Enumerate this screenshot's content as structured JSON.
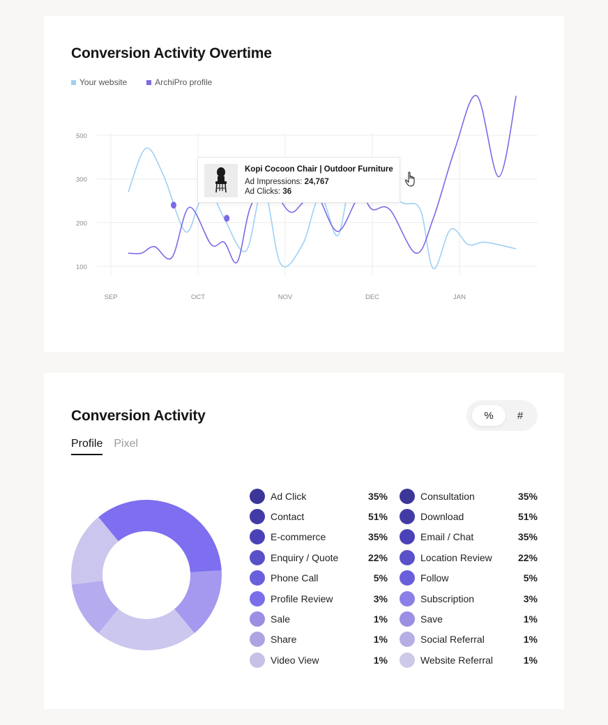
{
  "line_section": {
    "title": "Conversion Activity Overtime",
    "legend": [
      {
        "label": "Your website",
        "color": "#9fd0f4"
      },
      {
        "label": "ArchiPro profile",
        "color": "#7b6ae6"
      }
    ],
    "tooltip": {
      "title": "Kopi Cocoon Chair | Outdoor Furniture",
      "impressions_label": "Ad Impressions:",
      "impressions_value": "24,767",
      "clicks_label": "Ad Clicks:",
      "clicks_value": "36",
      "thumb_icon": "chair-icon",
      "cursor_icon": "hand-pointer-icon"
    }
  },
  "chart_data": [
    {
      "type": "line",
      "x": [
        "SEP",
        "OCT",
        "NOV",
        "DEC",
        "JAN"
      ],
      "ylim": [
        100,
        500
      ],
      "yticks": [
        100,
        200,
        300,
        500
      ],
      "grid": true,
      "legend_position": "top-left",
      "series": [
        {
          "name": "Your website",
          "color": "#9fd0f4",
          "points": [
            [
              0.2,
              270
            ],
            [
              0.4,
              370
            ],
            [
              0.6,
              310
            ],
            [
              0.85,
              180
            ],
            [
              1.0,
              240
            ],
            [
              1.1,
              290
            ],
            [
              1.3,
              210
            ],
            [
              1.55,
              135
            ],
            [
              1.75,
              280
            ],
            [
              1.95,
              105
            ],
            [
              2.2,
              150
            ],
            [
              2.4,
              260
            ],
            [
              2.6,
              170
            ],
            [
              2.75,
              295
            ],
            [
              2.9,
              285
            ],
            [
              3.1,
              275
            ],
            [
              3.35,
              245
            ],
            [
              3.55,
              230
            ],
            [
              3.7,
              95
            ],
            [
              3.9,
              185
            ],
            [
              4.1,
              150
            ],
            [
              4.3,
              155
            ],
            [
              4.65,
              140
            ]
          ]
        },
        {
          "name": "ArchiPro profile",
          "color": "#7b6ae6",
          "points": [
            [
              0.2,
              130
            ],
            [
              0.35,
              130
            ],
            [
              0.5,
              145
            ],
            [
              0.7,
              120
            ],
            [
              0.9,
              235
            ],
            [
              1.15,
              150
            ],
            [
              1.3,
              155
            ],
            [
              1.45,
              110
            ],
            [
              1.6,
              235
            ],
            [
              1.8,
              285
            ],
            [
              2.05,
              225
            ],
            [
              2.2,
              245
            ],
            [
              2.35,
              270
            ],
            [
              2.6,
              180
            ],
            [
              2.85,
              260
            ],
            [
              3.0,
              230
            ],
            [
              3.2,
              230
            ],
            [
              3.5,
              130
            ],
            [
              3.7,
              210
            ],
            [
              3.95,
              370
            ],
            [
              4.2,
              490
            ],
            [
              4.45,
              305
            ],
            [
              4.65,
              490
            ]
          ]
        }
      ],
      "markers": [
        {
          "series": "ArchiPro profile",
          "x": 0.72,
          "y": 240
        },
        {
          "series": "Your website",
          "x": 1.33,
          "y": 210
        }
      ]
    },
    {
      "type": "pie",
      "donut": true,
      "slices": [
        {
          "value": 35,
          "color": "#7e6ef0"
        },
        {
          "value": 15,
          "color": "#a499ef"
        },
        {
          "value": 22,
          "color": "#ccc7ee"
        },
        {
          "value": 12,
          "color": "#b4acee"
        },
        {
          "value": 16,
          "color": "#cbc6ed"
        }
      ]
    }
  ],
  "activity_section": {
    "title": "Conversion Activity",
    "toggle": {
      "percent": "%",
      "count": "#"
    },
    "tabs": [
      {
        "label": "Profile",
        "active": true
      },
      {
        "label": "Pixel",
        "active": false
      }
    ],
    "left_items": [
      {
        "label": "Ad Click",
        "value": "35%",
        "color": "#3c3698"
      },
      {
        "label": "Contact",
        "value": "51%",
        "color": "#423ba6"
      },
      {
        "label": "E-commerce",
        "value": "35%",
        "color": "#4a42b6"
      },
      {
        "label": "Enquiry / Quote",
        "value": "22%",
        "color": "#5a50c8"
      },
      {
        "label": "Phone Call",
        "value": "5%",
        "color": "#6a5fdb"
      },
      {
        "label": "Profile Review",
        "value": "3%",
        "color": "#7b6ee9"
      },
      {
        "label": "Sale",
        "value": "1%",
        "color": "#9a8fe2"
      },
      {
        "label": "Share",
        "value": "1%",
        "color": "#aca4e2"
      },
      {
        "label": "Video View",
        "value": "1%",
        "color": "#c6c1e6"
      }
    ],
    "right_items": [
      {
        "label": "Consultation",
        "value": "35%",
        "color": "#3c3698"
      },
      {
        "label": "Download",
        "value": "51%",
        "color": "#423ba6"
      },
      {
        "label": "Email / Chat",
        "value": "35%",
        "color": "#4a42b6"
      },
      {
        "label": "Location Review",
        "value": "22%",
        "color": "#5a50c8"
      },
      {
        "label": "Follow",
        "value": "5%",
        "color": "#6a5fdb"
      },
      {
        "label": "Subscription",
        "value": "3%",
        "color": "#8a80e6"
      },
      {
        "label": "Save",
        "value": "1%",
        "color": "#9a8fe2"
      },
      {
        "label": "Social Referral",
        "value": "1%",
        "color": "#b5aee4"
      },
      {
        "label": "Website Referral",
        "value": "1%",
        "color": "#cdc9e8"
      }
    ]
  }
}
